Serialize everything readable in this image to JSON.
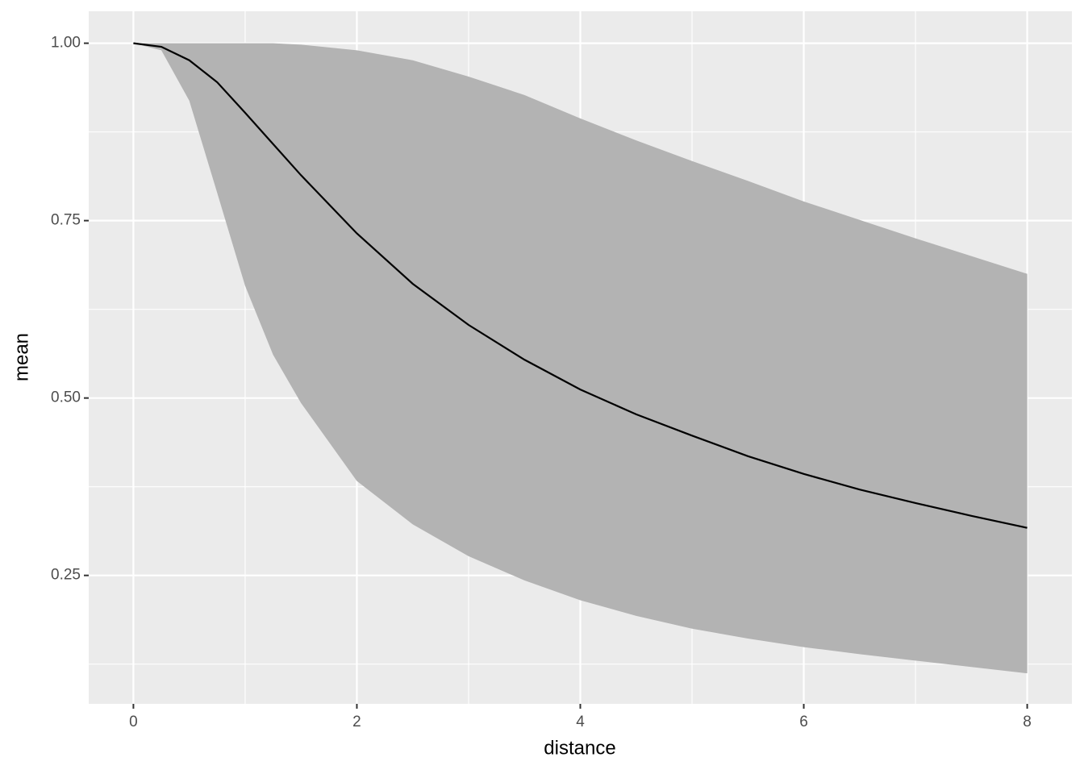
{
  "chart_data": {
    "type": "ribbon-line",
    "x_label": "distance",
    "y_label": "mean",
    "x": [
      0,
      0.25,
      0.5,
      0.75,
      1,
      1.25,
      1.5,
      2,
      2.5,
      3,
      3.5,
      4,
      4.5,
      5,
      5.5,
      6,
      6.5,
      7,
      7.5,
      8
    ],
    "y": [
      1.0,
      0.995,
      0.976,
      0.945,
      0.902,
      0.858,
      0.814,
      0.732,
      0.661,
      0.603,
      0.554,
      0.512,
      0.477,
      0.447,
      0.418,
      0.393,
      0.371,
      0.352,
      0.334,
      0.317
    ],
    "ymin": [
      1.0,
      0.99,
      0.919,
      0.789,
      0.658,
      0.561,
      0.493,
      0.383,
      0.322,
      0.277,
      0.243,
      0.215,
      0.193,
      0.175,
      0.161,
      0.149,
      0.139,
      0.13,
      0.121,
      0.112
    ],
    "ymax": [
      1.0,
      1.0,
      1.0,
      1.0,
      1.0,
      1.0,
      0.998,
      0.99,
      0.976,
      0.953,
      0.927,
      0.894,
      0.863,
      0.834,
      0.806,
      0.777,
      0.751,
      0.725,
      0.7,
      0.675
    ],
    "line_color": "#000000",
    "ribbon_color": "#b3b3b3",
    "panel_color": "#ebebeb",
    "xlim": [
      -0.4,
      8.4
    ],
    "ylim": [
      0.069,
      1.045
    ],
    "xticks": [
      0,
      2,
      4,
      6,
      8
    ],
    "yticks": [
      0.25,
      {
        "value": 0.5,
        "label": "0.50"
      },
      0.75,
      {
        "value": 1,
        "label": "1.00"
      }
    ],
    "x_minor": [
      1,
      3,
      5,
      7
    ],
    "y_minor": [
      0.125,
      0.375,
      0.625,
      0.875
    ],
    "grid": true
  }
}
